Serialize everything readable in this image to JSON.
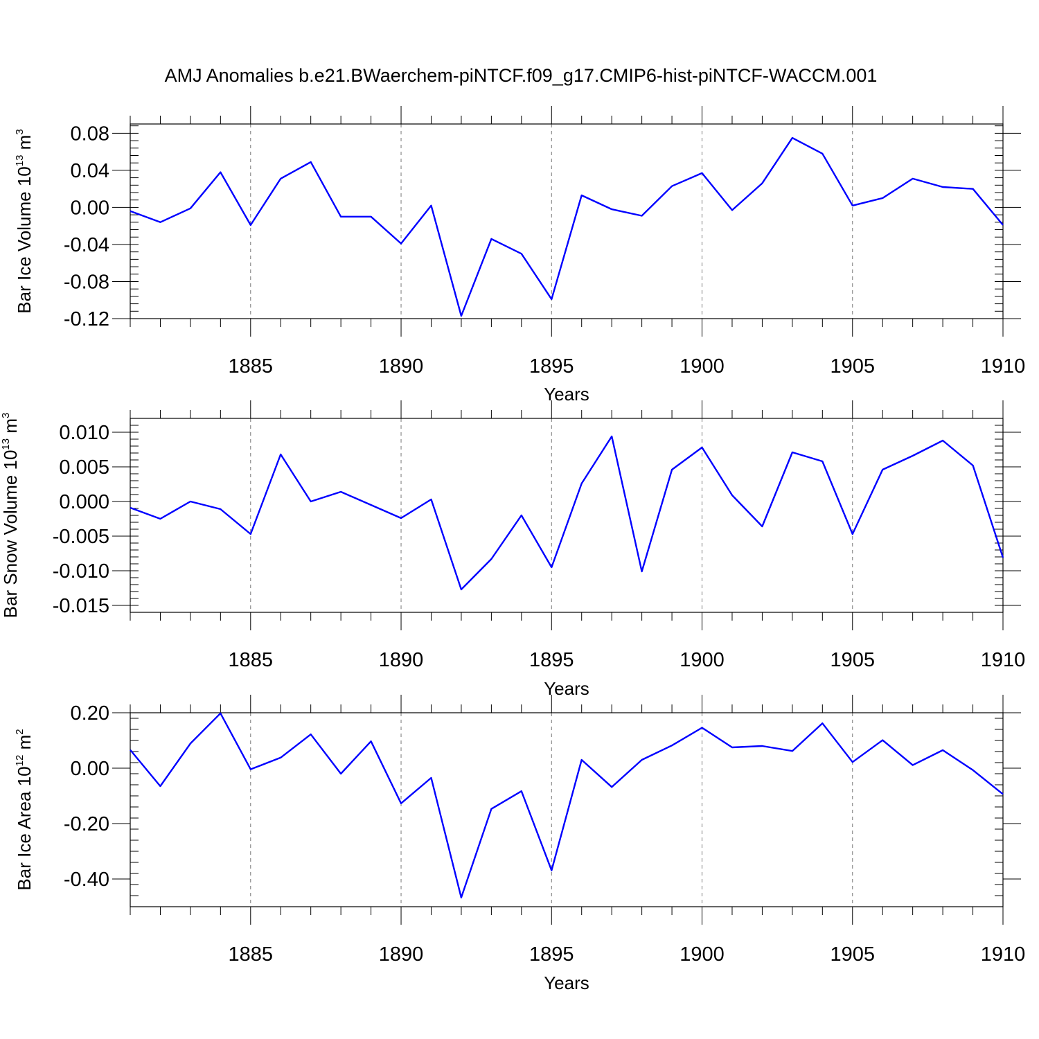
{
  "title": "AMJ Anomalies b.e21.BWaerchem-piNTCF.f09_g17.CMIP6-hist-piNTCF-WACCM.001",
  "colors": {
    "line": "#0000ff",
    "grid": "#777777",
    "axis": "#000000",
    "background": "#ffffff"
  },
  "chart_data": [
    {
      "type": "line",
      "name": "ice-volume",
      "ylabel": {
        "main": "Bar Ice Volume 10",
        "sup": "13",
        "unit": " m",
        "unit_sup": "3"
      },
      "xlabel": "Years",
      "xlim": [
        1881,
        1910
      ],
      "ylim": [
        -0.12,
        0.09
      ],
      "yticks": [
        -0.12,
        -0.08,
        -0.04,
        0.0,
        0.04,
        0.08
      ],
      "ytick_labels": [
        "-0.12",
        "-0.08",
        "-0.04",
        "0.00",
        "0.04",
        "0.08"
      ],
      "yminor_step": 0.008,
      "xticks": [
        1885,
        1890,
        1895,
        1900,
        1905,
        1910
      ],
      "xtick_labels": [
        "1885",
        "1890",
        "1895",
        "1900",
        "1905",
        "1910"
      ],
      "grid_x": [
        1885,
        1890,
        1895,
        1900,
        1905
      ],
      "x": [
        1881,
        1882,
        1883,
        1884,
        1885,
        1886,
        1887,
        1888,
        1889,
        1890,
        1891,
        1892,
        1893,
        1894,
        1895,
        1896,
        1897,
        1898,
        1899,
        1900,
        1901,
        1902,
        1903,
        1904,
        1905,
        1906,
        1907,
        1908,
        1909,
        1910
      ],
      "values": [
        -0.004,
        -0.016,
        -0.001,
        0.038,
        -0.019,
        0.031,
        0.049,
        -0.01,
        -0.01,
        -0.039,
        0.002,
        -0.117,
        -0.034,
        -0.05,
        -0.099,
        0.013,
        -0.002,
        -0.009,
        0.023,
        0.037,
        -0.003,
        0.026,
        0.075,
        0.058,
        0.002,
        0.01,
        0.031,
        0.022,
        0.02,
        -0.019
      ]
    },
    {
      "type": "line",
      "name": "snow-volume",
      "ylabel": {
        "main": "Bar Snow Volume 10",
        "sup": "13",
        "unit": " m",
        "unit_sup": "3"
      },
      "xlabel": "Years",
      "xlim": [
        1881,
        1910
      ],
      "ylim": [
        -0.016,
        0.012
      ],
      "yticks": [
        -0.015,
        -0.01,
        -0.005,
        0.0,
        0.005,
        0.01
      ],
      "ytick_labels": [
        "-0.015",
        "-0.010",
        "-0.005",
        "0.000",
        "0.005",
        "0.010"
      ],
      "yminor_step": 0.001,
      "xticks": [
        1885,
        1890,
        1895,
        1900,
        1905,
        1910
      ],
      "xtick_labels": [
        "1885",
        "1890",
        "1895",
        "1900",
        "1905",
        "1910"
      ],
      "grid_x": [
        1885,
        1890,
        1895,
        1900,
        1905
      ],
      "x": [
        1881,
        1882,
        1883,
        1884,
        1885,
        1886,
        1887,
        1888,
        1889,
        1890,
        1891,
        1892,
        1893,
        1894,
        1895,
        1896,
        1897,
        1898,
        1899,
        1900,
        1901,
        1902,
        1903,
        1904,
        1905,
        1906,
        1907,
        1908,
        1909,
        1910
      ],
      "values": [
        -0.0009,
        -0.0025,
        0.0,
        -0.0011,
        -0.0047,
        0.0068,
        0.0,
        0.0014,
        -0.0005,
        -0.0024,
        0.0003,
        -0.0127,
        -0.0083,
        -0.002,
        -0.0095,
        0.0026,
        0.0094,
        -0.0101,
        0.0046,
        0.0078,
        0.0009,
        -0.0036,
        0.0071,
        0.0058,
        -0.0047,
        0.0046,
        0.0066,
        0.0088,
        0.0052,
        -0.0081
      ]
    },
    {
      "type": "line",
      "name": "ice-area",
      "ylabel": {
        "main": "Bar Ice Area 10",
        "sup": "12",
        "unit": " m",
        "unit_sup": "2"
      },
      "xlabel": "Years",
      "xlim": [
        1881,
        1910
      ],
      "ylim": [
        -0.5,
        0.2
      ],
      "yticks": [
        -0.4,
        -0.2,
        0.0,
        0.2
      ],
      "ytick_labels": [
        "-0.40",
        "-0.20",
        "0.00",
        "0.20"
      ],
      "yminor_step": 0.04,
      "xticks": [
        1885,
        1890,
        1895,
        1900,
        1905,
        1910
      ],
      "xtick_labels": [
        "1885",
        "1890",
        "1895",
        "1900",
        "1905",
        "1910"
      ],
      "grid_x": [
        1885,
        1890,
        1895,
        1900,
        1905
      ],
      "x": [
        1881,
        1882,
        1883,
        1884,
        1885,
        1886,
        1887,
        1888,
        1889,
        1890,
        1891,
        1892,
        1893,
        1894,
        1895,
        1896,
        1897,
        1898,
        1899,
        1900,
        1901,
        1902,
        1903,
        1904,
        1905,
        1906,
        1907,
        1908,
        1909,
        1910
      ],
      "values": [
        0.066,
        -0.065,
        0.089,
        0.198,
        -0.004,
        0.038,
        0.122,
        -0.02,
        0.097,
        -0.127,
        -0.035,
        -0.467,
        -0.147,
        -0.083,
        -0.369,
        0.03,
        -0.068,
        0.03,
        0.082,
        0.146,
        0.075,
        0.08,
        0.062,
        0.162,
        0.022,
        0.101,
        0.011,
        0.065,
        -0.007,
        -0.094
      ]
    }
  ]
}
